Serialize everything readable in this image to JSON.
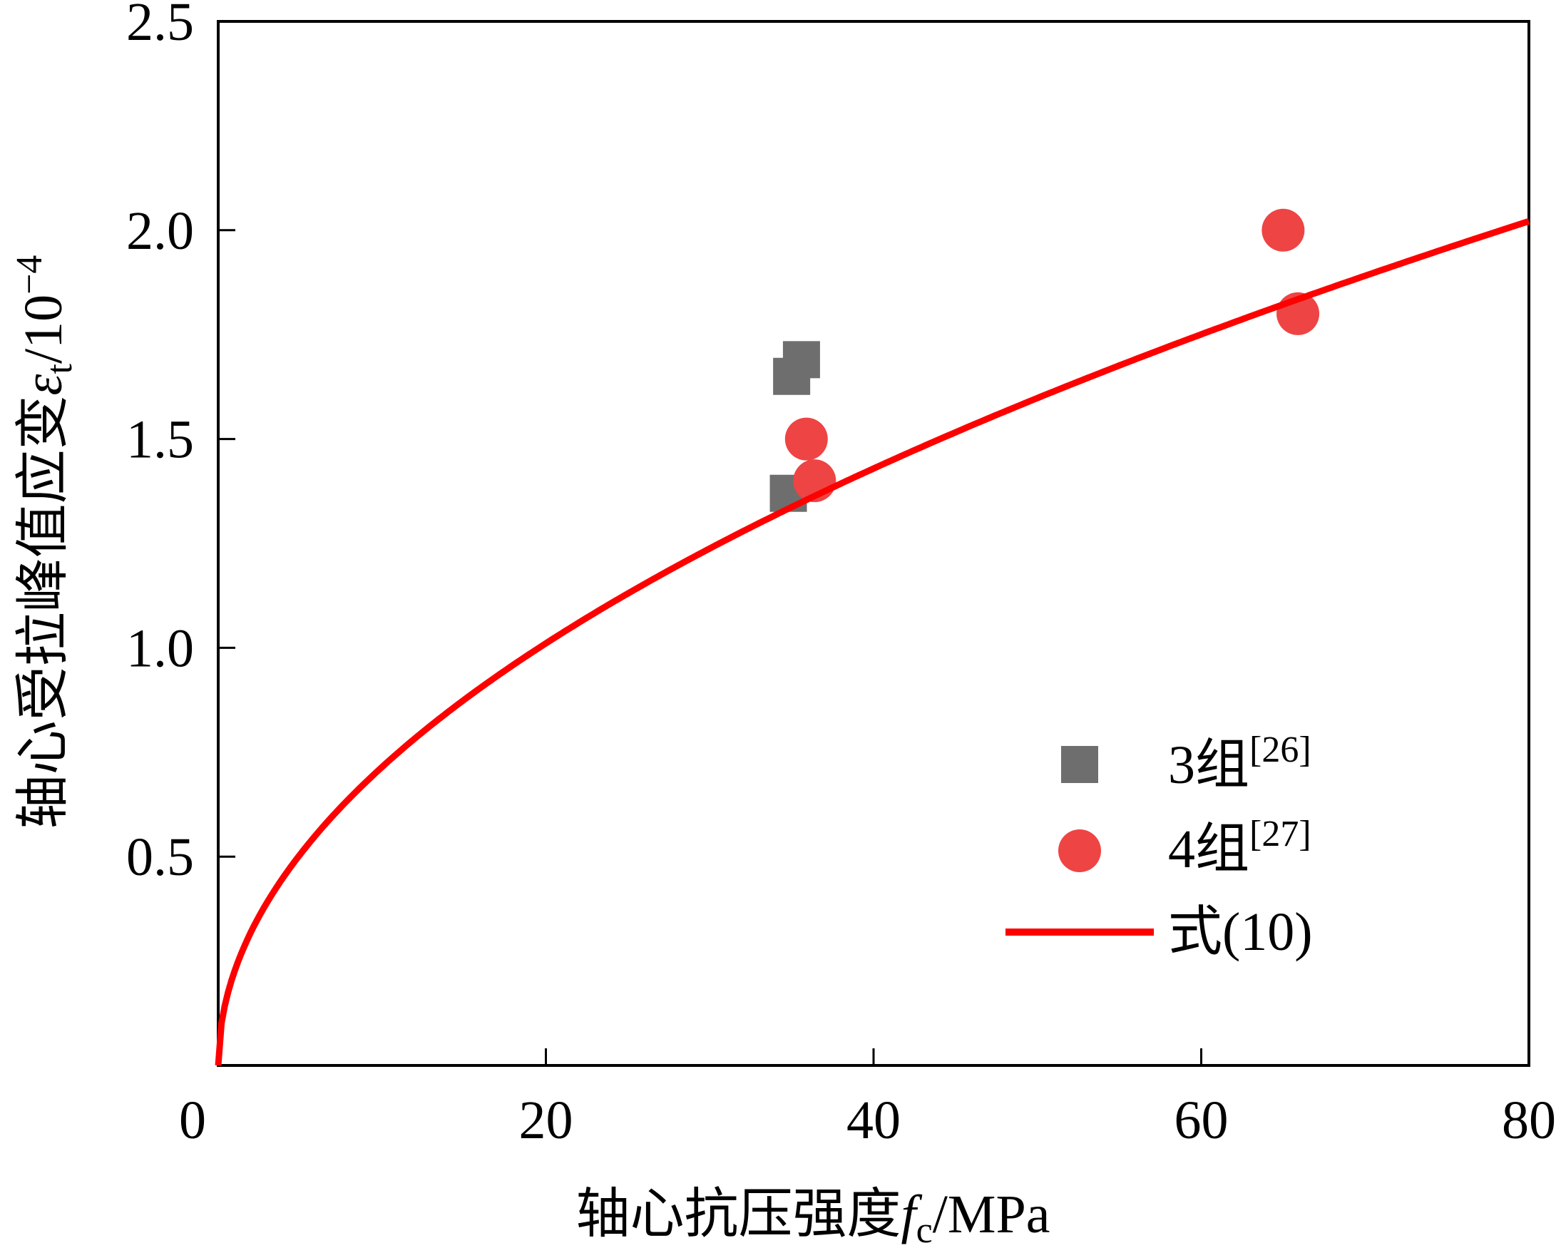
{
  "chart_data": {
    "type": "scatter",
    "xlabel": "轴心抗压强度",
    "xlabel_symbol": "f",
    "xlabel_sub": "c",
    "xlabel_unit": "/MPa",
    "ylabel": "轴心受拉峰值应变",
    "ylabel_symbol": "ε",
    "ylabel_sub": "t",
    "ylabel_unit": "/10",
    "ylabel_exp": "−4",
    "xlim": [
      0,
      80
    ],
    "ylim": [
      0,
      2.5
    ],
    "x_ticks": [
      {
        "value": 0,
        "label": "0"
      },
      {
        "value": 20,
        "label": "20"
      },
      {
        "value": 40,
        "label": "40"
      },
      {
        "value": 60,
        "label": "60"
      },
      {
        "value": 80,
        "label": "80"
      }
    ],
    "y_ticks": [
      {
        "value": 0.5,
        "label": "0.5"
      },
      {
        "value": 1.0,
        "label": "1.0"
      },
      {
        "value": 1.5,
        "label": "1.5"
      },
      {
        "value": 2.0,
        "label": "2.0"
      },
      {
        "value": 2.5,
        "label": "2.5"
      }
    ],
    "grid": false,
    "legend_position": "bottom-right",
    "series": [
      {
        "name": "3组",
        "name_ref": "[26]",
        "marker": "square",
        "color": "#6e6e6e",
        "points": [
          [
            35.6,
            1.69
          ],
          [
            35.0,
            1.65
          ],
          [
            34.8,
            1.37
          ]
        ]
      },
      {
        "name": "4组",
        "name_ref": "[27]",
        "marker": "circle",
        "color": "#ee4444",
        "points": [
          [
            35.9,
            1.5
          ],
          [
            36.4,
            1.4
          ],
          [
            65.0,
            2.0
          ],
          [
            65.9,
            1.8
          ]
        ]
      },
      {
        "name": "式(10)",
        "marker": "line",
        "color": "#ff0000",
        "curve": {
          "formula": "0.226*x^0.5",
          "x_range": [
            0,
            80
          ]
        }
      }
    ]
  }
}
